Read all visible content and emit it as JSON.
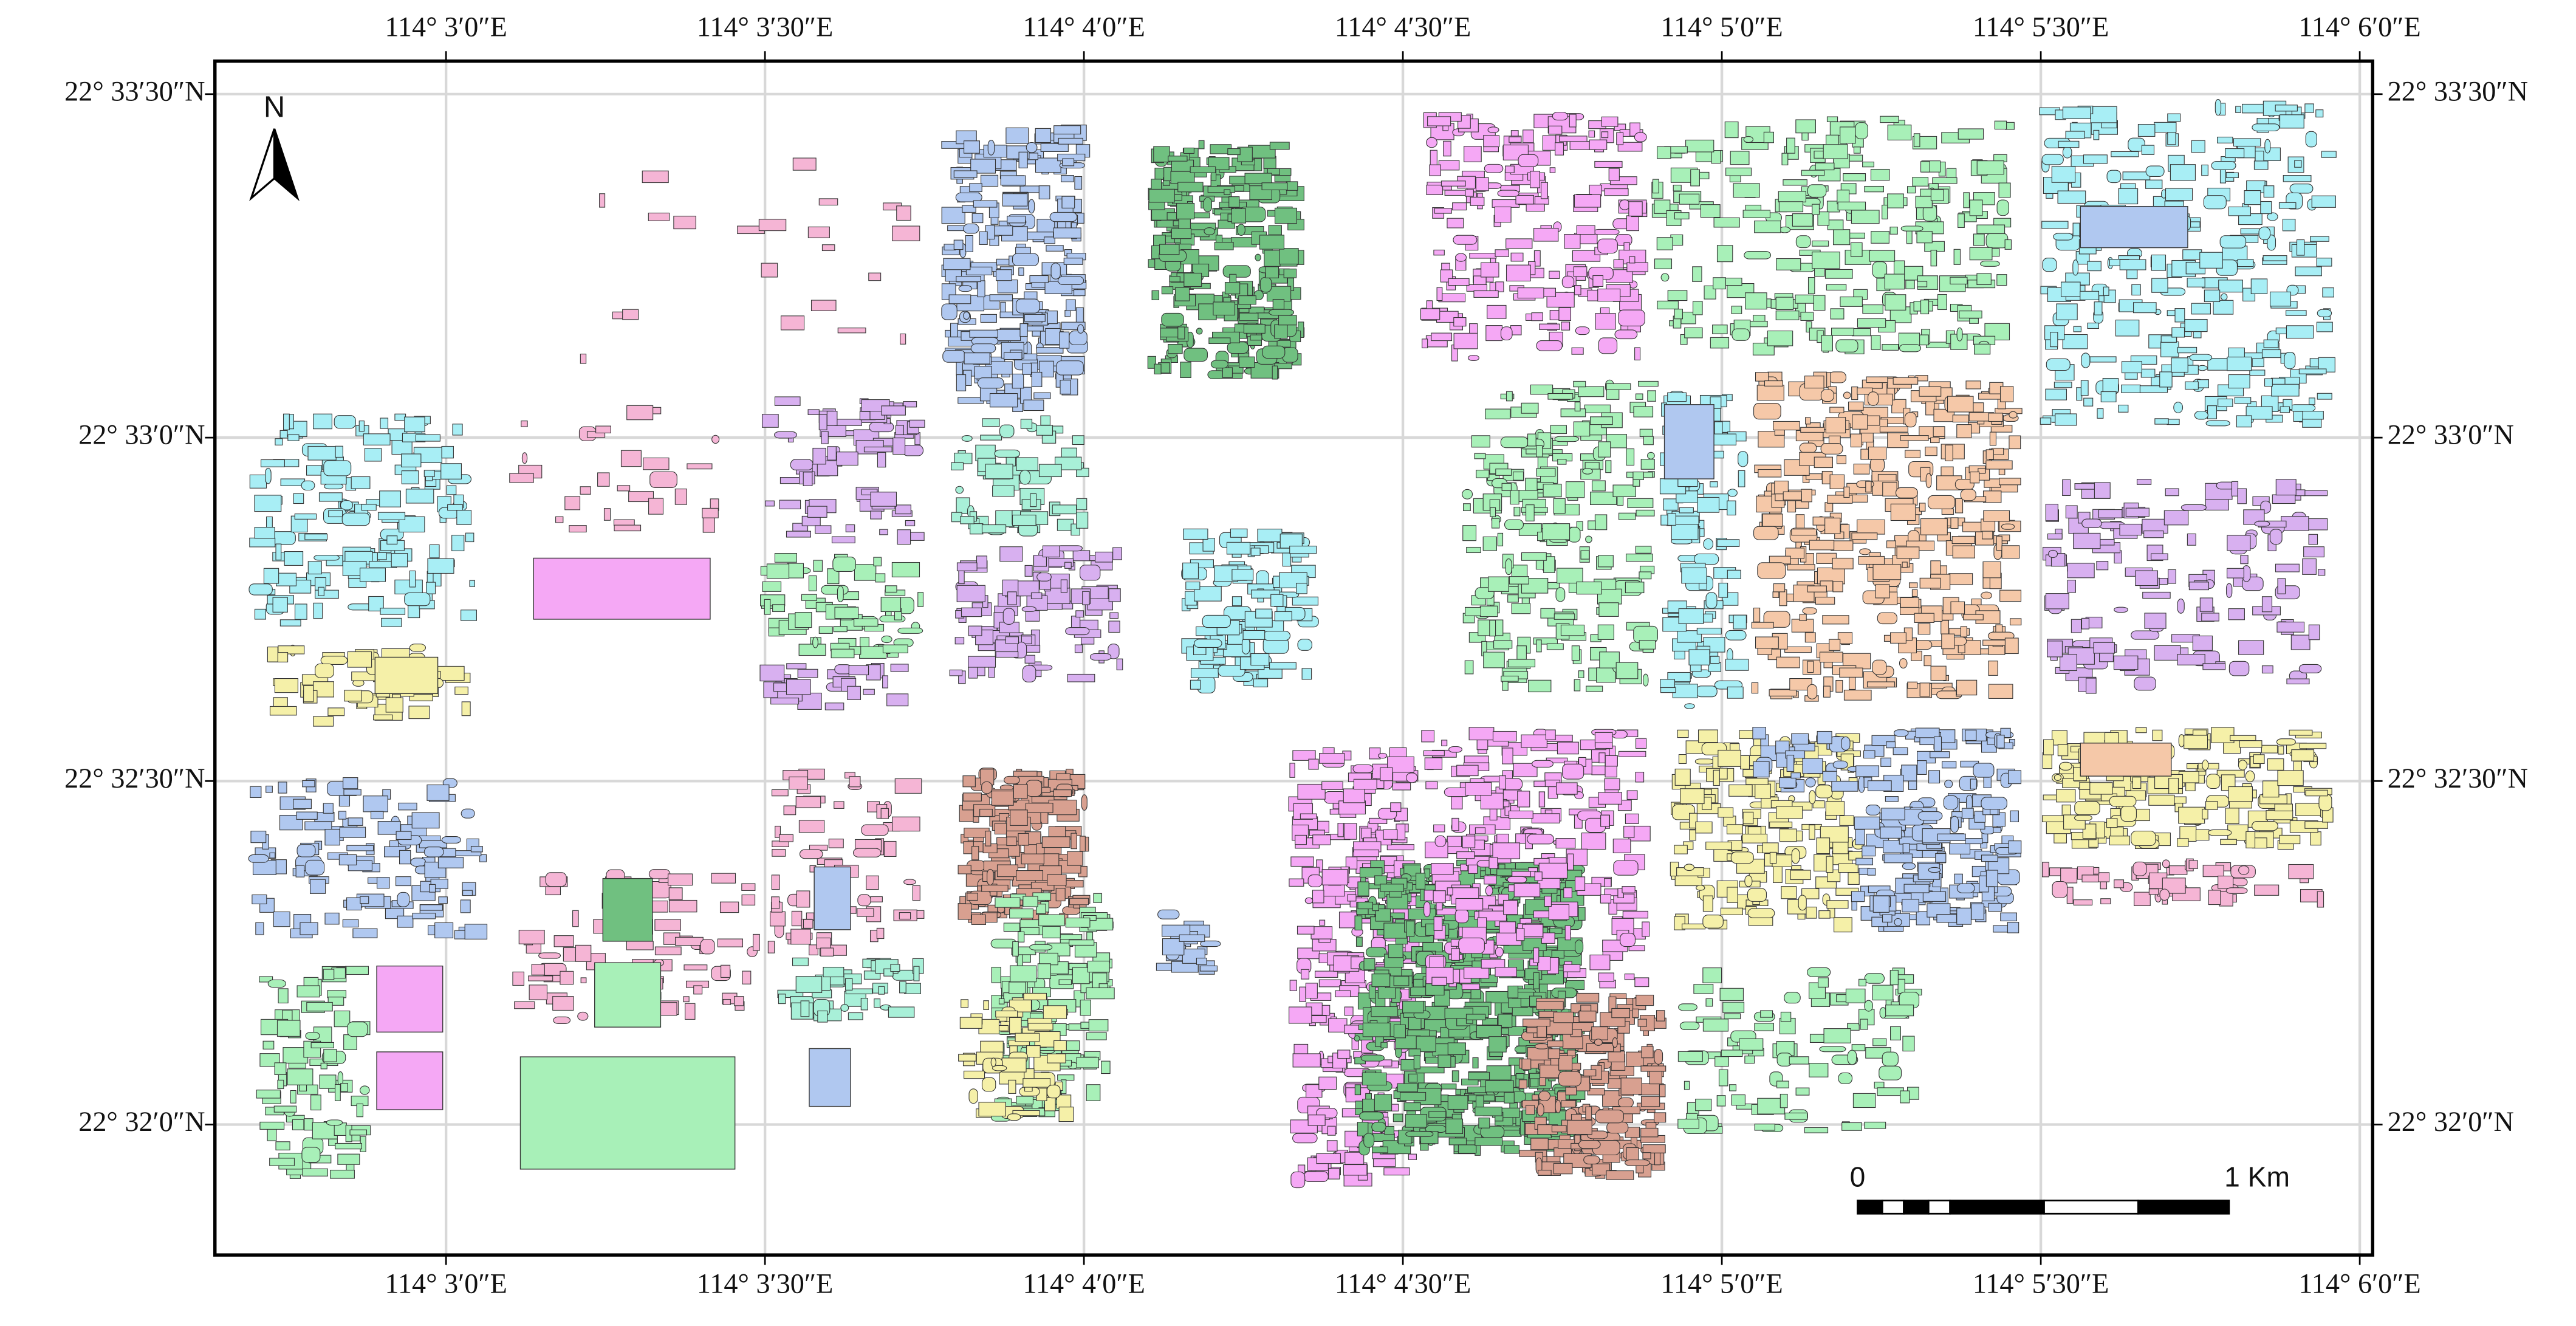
{
  "map": {
    "longitude_labels": [
      "114° 3′0″E",
      "114° 3′30″E",
      "114° 4′0″E",
      "114° 4′30″E",
      "114° 5′0″E",
      "114° 5′30″E",
      "114° 6′0″E"
    ],
    "latitude_labels": [
      "22° 33′30″N",
      "22° 33′0″N",
      "22° 32′30″N",
      "22° 32′0″N"
    ],
    "north_label": "N",
    "scale_bar": {
      "start_label": "0",
      "end_label": "1 Km"
    }
  }
}
